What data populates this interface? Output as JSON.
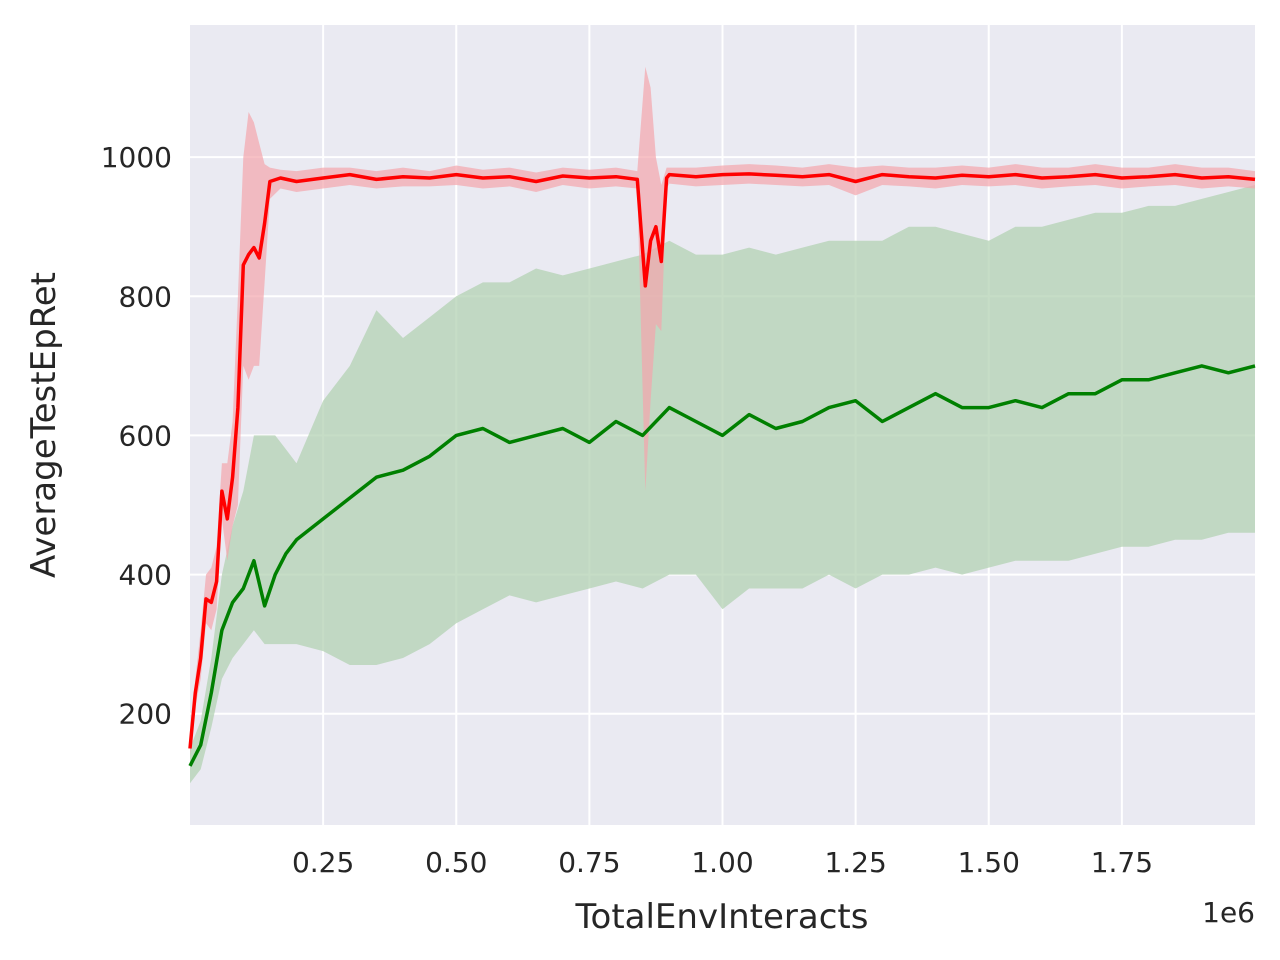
{
  "chart_data": {
    "type": "line",
    "title": "",
    "xlabel": "TotalEnvInteracts",
    "ylabel": "AverageTestEpRet",
    "x_offset_label": "1e6",
    "xlim": [
      0.0,
      2.0
    ],
    "ylim": [
      40,
      1190
    ],
    "x_ticks": [
      0.25,
      0.5,
      0.75,
      1.0,
      1.25,
      1.5,
      1.75
    ],
    "x_tick_labels": [
      "0.25",
      "0.50",
      "0.75",
      "1.00",
      "1.25",
      "1.50",
      "1.75"
    ],
    "y_ticks": [
      200,
      400,
      600,
      800,
      1000
    ],
    "y_tick_labels": [
      "200",
      "400",
      "600",
      "800",
      "1000"
    ],
    "grid": true,
    "colors": {
      "background": "#eaeaf2",
      "grid": "#ffffff"
    },
    "series": [
      {
        "color": "#ff0000",
        "band_color": "#f3a5ad",
        "x": [
          0.0,
          0.01,
          0.02,
          0.03,
          0.04,
          0.05,
          0.06,
          0.07,
          0.08,
          0.09,
          0.1,
          0.11,
          0.12,
          0.13,
          0.14,
          0.15,
          0.17,
          0.2,
          0.25,
          0.3,
          0.35,
          0.4,
          0.45,
          0.5,
          0.55,
          0.6,
          0.65,
          0.7,
          0.75,
          0.8,
          0.84,
          0.855,
          0.865,
          0.875,
          0.885,
          0.895,
          0.9,
          0.95,
          1.0,
          1.05,
          1.1,
          1.15,
          1.2,
          1.25,
          1.3,
          1.35,
          1.4,
          1.45,
          1.5,
          1.55,
          1.6,
          1.65,
          1.7,
          1.75,
          1.8,
          1.85,
          1.9,
          1.95,
          2.0
        ],
        "y": [
          150,
          230,
          280,
          365,
          360,
          390,
          520,
          480,
          540,
          640,
          845,
          860,
          870,
          855,
          905,
          965,
          970,
          965,
          970,
          975,
          968,
          972,
          970,
          975,
          970,
          972,
          965,
          973,
          970,
          972,
          968,
          815,
          880,
          900,
          850,
          970,
          975,
          972,
          975,
          976,
          974,
          972,
          975,
          965,
          975,
          972,
          970,
          974,
          972,
          975,
          970,
          972,
          975,
          970,
          972,
          975,
          970,
          972,
          968
        ],
        "upper": [
          160,
          250,
          320,
          400,
          410,
          440,
          560,
          560,
          620,
          800,
          1000,
          1065,
          1050,
          1020,
          990,
          985,
          982,
          980,
          985,
          985,
          980,
          985,
          980,
          988,
          982,
          985,
          978,
          985,
          982,
          985,
          980,
          1130,
          1100,
          1000,
          960,
          985,
          985,
          985,
          988,
          990,
          988,
          985,
          990,
          985,
          988,
          985,
          985,
          988,
          985,
          990,
          985,
          985,
          990,
          985,
          985,
          990,
          985,
          985,
          980
        ],
        "lower": [
          140,
          210,
          250,
          330,
          320,
          350,
          480,
          420,
          470,
          500,
          700,
          680,
          700,
          700,
          820,
          940,
          955,
          950,
          955,
          960,
          955,
          958,
          958,
          960,
          955,
          958,
          950,
          960,
          955,
          958,
          955,
          520,
          650,
          760,
          750,
          955,
          962,
          958,
          960,
          962,
          960,
          958,
          960,
          945,
          960,
          958,
          955,
          960,
          958,
          960,
          955,
          958,
          960,
          955,
          958,
          960,
          955,
          958,
          955
        ]
      },
      {
        "color": "#008000",
        "band_color": "#b3d1b3",
        "x": [
          0.0,
          0.02,
          0.04,
          0.06,
          0.08,
          0.1,
          0.12,
          0.14,
          0.16,
          0.18,
          0.2,
          0.25,
          0.3,
          0.35,
          0.4,
          0.45,
          0.5,
          0.55,
          0.6,
          0.65,
          0.7,
          0.75,
          0.8,
          0.85,
          0.9,
          0.95,
          1.0,
          1.05,
          1.1,
          1.15,
          1.2,
          1.25,
          1.3,
          1.35,
          1.4,
          1.45,
          1.5,
          1.55,
          1.6,
          1.65,
          1.7,
          1.75,
          1.8,
          1.85,
          1.9,
          1.95,
          2.0
        ],
        "y": [
          125,
          155,
          230,
          320,
          360,
          380,
          420,
          355,
          400,
          430,
          450,
          480,
          510,
          540,
          550,
          570,
          600,
          610,
          590,
          600,
          610,
          590,
          620,
          600,
          640,
          620,
          600,
          630,
          610,
          620,
          640,
          650,
          620,
          640,
          660,
          640,
          640,
          650,
          640,
          660,
          660,
          680,
          680,
          690,
          700,
          690,
          700
        ],
        "upper": [
          150,
          190,
          280,
          400,
          470,
          520,
          600,
          600,
          600,
          580,
          560,
          650,
          700,
          780,
          740,
          770,
          800,
          820,
          820,
          840,
          830,
          840,
          850,
          860,
          880,
          860,
          860,
          870,
          860,
          870,
          880,
          880,
          880,
          900,
          900,
          890,
          880,
          900,
          900,
          910,
          920,
          920,
          930,
          930,
          940,
          950,
          960
        ],
        "lower": [
          100,
          120,
          180,
          250,
          280,
          300,
          320,
          300,
          300,
          300,
          300,
          290,
          270,
          270,
          280,
          300,
          330,
          350,
          370,
          360,
          370,
          380,
          390,
          380,
          400,
          400,
          350,
          380,
          380,
          380,
          400,
          380,
          400,
          400,
          410,
          400,
          410,
          420,
          420,
          420,
          430,
          440,
          440,
          450,
          450,
          460,
          460
        ]
      }
    ]
  }
}
